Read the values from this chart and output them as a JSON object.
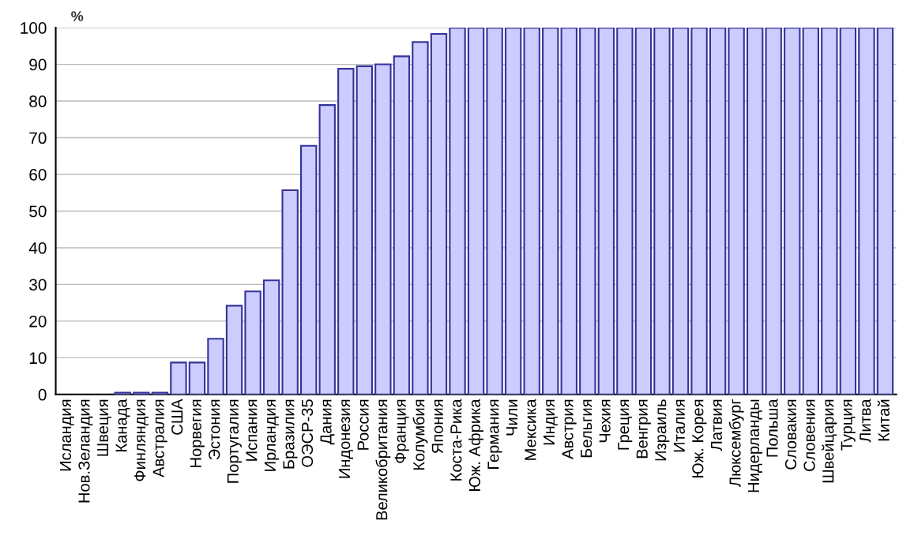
{
  "chart_data": {
    "type": "bar",
    "ylabel": "%",
    "categories": [
      "Исландия",
      "Нов.Зеландия",
      "Швеция",
      "Канада",
      "Финляндия",
      "Австралия",
      "США",
      "Норвегия",
      "Эстония",
      "Португалия",
      "Испания",
      "Ирландия",
      "Бразилия",
      "ОЭСР-35",
      "Дания",
      "Индонезия",
      "Россия",
      "Великобритания",
      "Франция",
      "Колумбия",
      "Япония",
      "Коста-Рика",
      "Юж. Африка",
      "Германия",
      "Чили",
      "Мексика",
      "Индия",
      "Австрия",
      "Бельгия",
      "Чехия",
      "Греция",
      "Венгрия",
      "Израиль",
      "Италия",
      "Юж. Корея",
      "Латвия",
      "Люксембург",
      "Нидерланды",
      "Польша",
      "Словакия",
      "Словения",
      "Швейцария",
      "Турция",
      "Литва",
      "Китай"
    ],
    "values": [
      0,
      0,
      0,
      0.5,
      0.5,
      0.5,
      8.7,
      8.7,
      15.2,
      24.2,
      28.1,
      31.1,
      55.7,
      67.8,
      78.9,
      88.8,
      89.5,
      90,
      92.2,
      96.1,
      98.3,
      100,
      100,
      100,
      100,
      100,
      100,
      100,
      100,
      100,
      100,
      100,
      100,
      100,
      100,
      100,
      100,
      100,
      100,
      100,
      100,
      100,
      100,
      100,
      100
    ],
    "color": "#ccccff",
    "ylim": [
      0,
      100
    ],
    "yticks": [
      0,
      10,
      20,
      30,
      40,
      50,
      60,
      70,
      80,
      90,
      100
    ],
    "grid": "y"
  }
}
